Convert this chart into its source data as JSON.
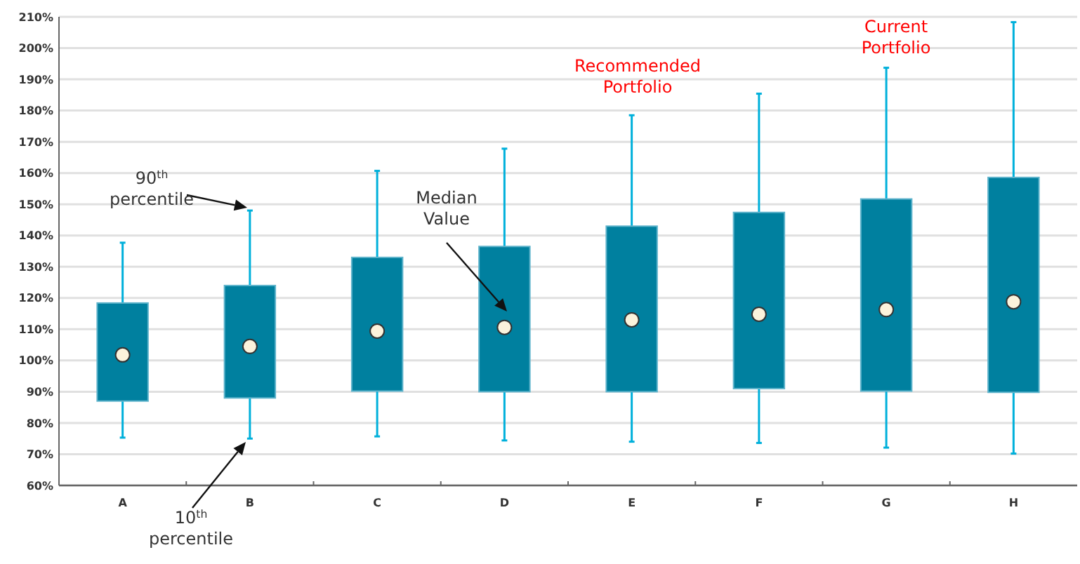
{
  "chart_data": {
    "type": "box",
    "categories": [
      "A",
      "B",
      "C",
      "D",
      "E",
      "F",
      "G",
      "H"
    ],
    "series": [
      {
        "color": "#00809f",
        "boxes": [
          {
            "low": 75.3,
            "q1": 87,
            "median": 101.8,
            "q3": 118.4,
            "high": 137.7
          },
          {
            "low": 75,
            "q1": 88,
            "median": 104.5,
            "q3": 124,
            "high": 148
          },
          {
            "low": 75.7,
            "q1": 90.2,
            "median": 109.4,
            "q3": 133,
            "high": 160.7
          },
          {
            "low": 74.4,
            "q1": 90,
            "median": 110.6,
            "q3": 136.5,
            "high": 167.8
          },
          {
            "low": 74,
            "q1": 90,
            "median": 113,
            "q3": 143,
            "high": 178.5
          },
          {
            "low": 73.6,
            "q1": 91,
            "median": 114.8,
            "q3": 147.4,
            "high": 185.4
          },
          {
            "low": 72.1,
            "q1": 90.2,
            "median": 116.3,
            "q3": 151.7,
            "high": 193.7
          },
          {
            "low": 70.2,
            "q1": 89.8,
            "median": 118.8,
            "q3": 158.6,
            "high": 208.3
          }
        ]
      }
    ],
    "ylim": [
      60,
      210
    ],
    "yticks": [
      {
        "value": 60,
        "label": "60%"
      },
      {
        "value": 70,
        "label": "70%"
      },
      {
        "value": 80,
        "label": "80%"
      },
      {
        "value": 90,
        "label": "90%"
      },
      {
        "value": 100,
        "label": "100%"
      },
      {
        "value": 110,
        "label": "110%"
      },
      {
        "value": 120,
        "label": "120%"
      },
      {
        "value": 130,
        "label": "130%"
      },
      {
        "value": 140,
        "label": "140%"
      },
      {
        "value": 150,
        "label": "150%"
      },
      {
        "value": 160,
        "label": "160%"
      },
      {
        "value": 170,
        "label": "170%"
      },
      {
        "value": 180,
        "label": "180%"
      },
      {
        "value": 190,
        "label": "190%"
      },
      {
        "value": 200,
        "label": "200%"
      },
      {
        "value": 210,
        "label": "210%"
      }
    ],
    "grid": "y",
    "marker": "circle",
    "annotations": [
      "90$^{th}$ percentile",
      "10$^{th}$ percentile",
      "Median Value",
      "Recommended Portfolio",
      "Current Portfolio"
    ]
  }
}
